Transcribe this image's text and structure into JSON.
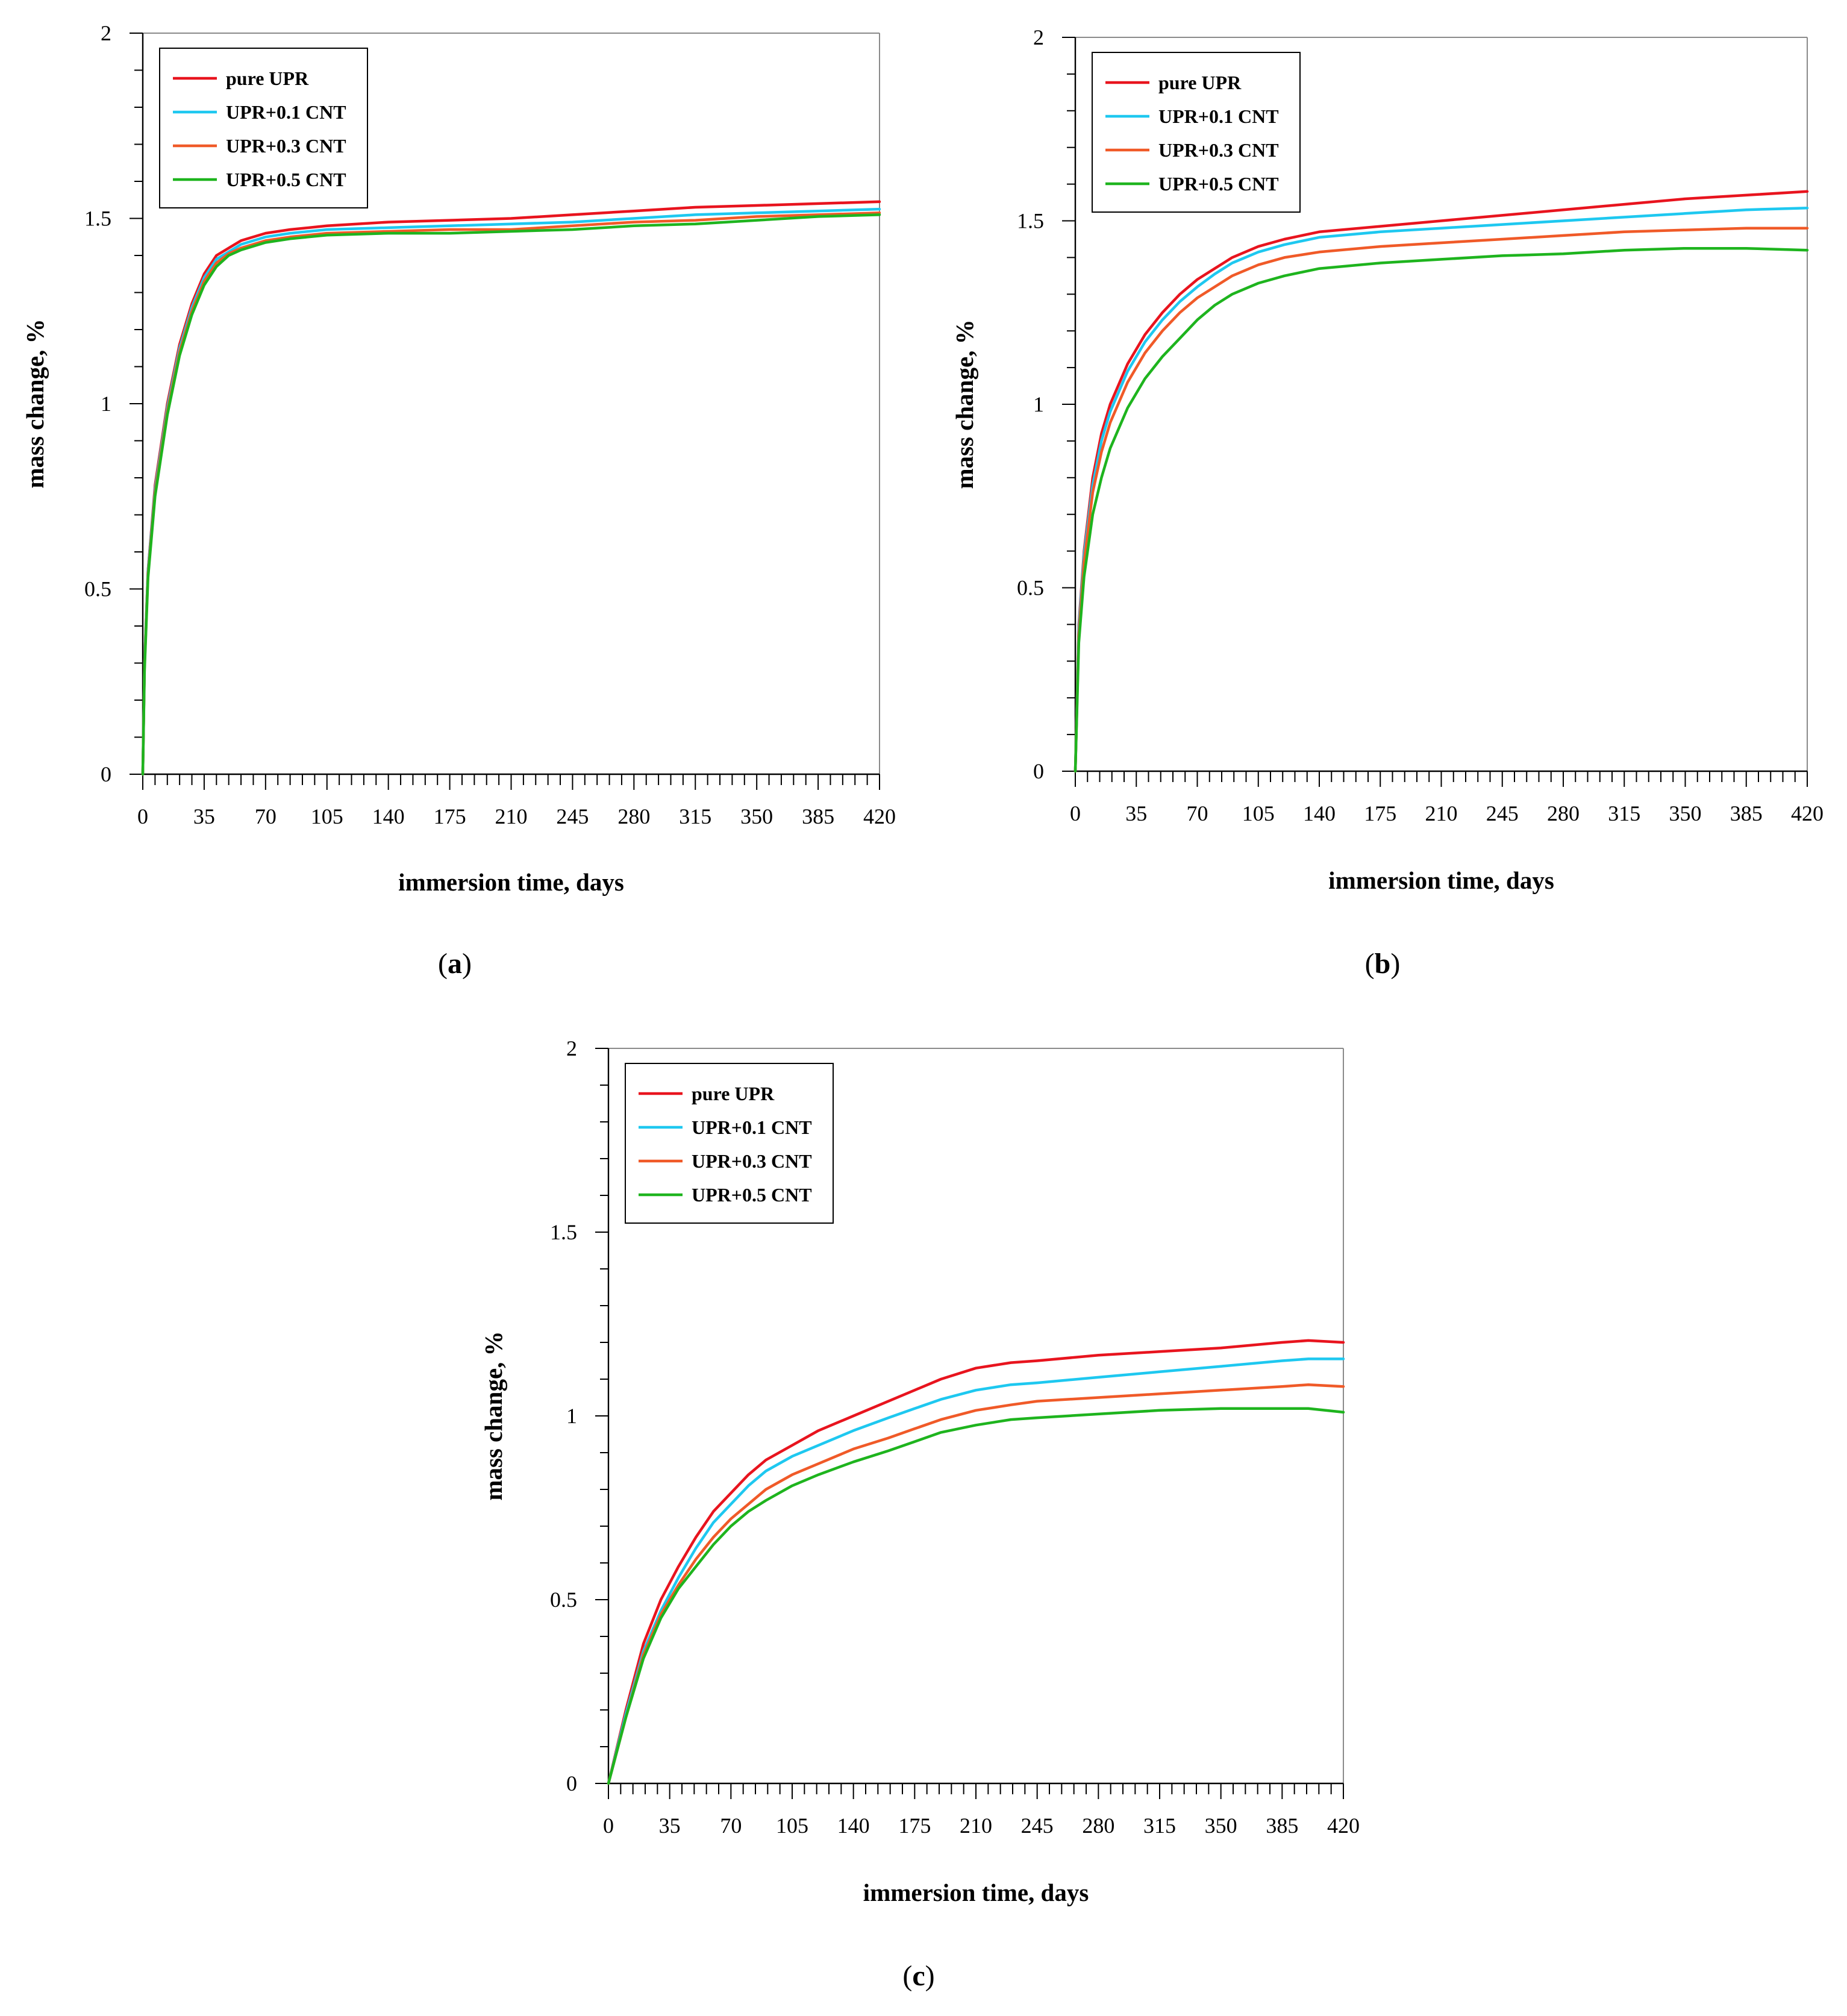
{
  "chart_data": [
    {
      "type": "line",
      "panel": "a",
      "panel_label": "a",
      "xlabel": "immersion time, days",
      "ylabel": "mass change, %",
      "xlim": [
        0,
        420
      ],
      "ylim": [
        0,
        2
      ],
      "xticks": [
        "0",
        "35",
        "70",
        "105",
        "140",
        "175",
        "210",
        "245",
        "280",
        "315",
        "350",
        "385",
        "420"
      ],
      "yticks": [
        "0",
        "0.5",
        "1",
        "1.5",
        "2"
      ],
      "legend": [
        "pure UPR",
        "UPR+0.1 CNT",
        "UPR+0.3 CNT",
        "UPR+0.5 CNT"
      ],
      "legend_position": "top-left",
      "series": [
        {
          "name": "pure UPR",
          "color": "#e8141e",
          "x": [
            0,
            1,
            3,
            7,
            14,
            21,
            28,
            35,
            42,
            49,
            56,
            70,
            84,
            105,
            140,
            175,
            210,
            245,
            280,
            315,
            350,
            385,
            420
          ],
          "y": [
            0,
            0.3,
            0.55,
            0.78,
            1.0,
            1.16,
            1.27,
            1.35,
            1.4,
            1.42,
            1.44,
            1.46,
            1.47,
            1.48,
            1.49,
            1.495,
            1.5,
            1.51,
            1.52,
            1.53,
            1.535,
            1.54,
            1.545
          ]
        },
        {
          "name": "UPR+0.1 CNT",
          "color": "#1ec8f0",
          "x": [
            0,
            1,
            3,
            7,
            14,
            21,
            28,
            35,
            42,
            49,
            56,
            70,
            84,
            105,
            140,
            175,
            210,
            245,
            280,
            315,
            350,
            385,
            420
          ],
          "y": [
            0,
            0.3,
            0.55,
            0.77,
            0.99,
            1.15,
            1.26,
            1.34,
            1.39,
            1.41,
            1.43,
            1.45,
            1.46,
            1.47,
            1.475,
            1.48,
            1.485,
            1.49,
            1.5,
            1.51,
            1.515,
            1.52,
            1.525
          ]
        },
        {
          "name": "UPR+0.3 CNT",
          "color": "#f05a28",
          "x": [
            0,
            1,
            3,
            7,
            14,
            21,
            28,
            35,
            42,
            49,
            56,
            70,
            84,
            105,
            140,
            175,
            210,
            245,
            280,
            315,
            350,
            385,
            420
          ],
          "y": [
            0,
            0.29,
            0.54,
            0.76,
            0.98,
            1.14,
            1.25,
            1.33,
            1.38,
            1.405,
            1.42,
            1.44,
            1.45,
            1.46,
            1.465,
            1.47,
            1.47,
            1.48,
            1.49,
            1.495,
            1.505,
            1.51,
            1.515
          ]
        },
        {
          "name": "UPR+0.5 CNT",
          "color": "#1eb41e",
          "x": [
            0,
            1,
            3,
            7,
            14,
            21,
            28,
            35,
            42,
            49,
            56,
            70,
            84,
            105,
            140,
            175,
            210,
            245,
            280,
            315,
            350,
            385,
            420
          ],
          "y": [
            0,
            0.28,
            0.53,
            0.75,
            0.97,
            1.13,
            1.24,
            1.32,
            1.37,
            1.4,
            1.415,
            1.435,
            1.445,
            1.455,
            1.46,
            1.46,
            1.465,
            1.47,
            1.48,
            1.485,
            1.495,
            1.505,
            1.51
          ]
        }
      ]
    },
    {
      "type": "line",
      "panel": "b",
      "panel_label": "b",
      "xlabel": "immersion time, days",
      "ylabel": "mass change, %",
      "xlim": [
        0,
        420
      ],
      "ylim": [
        0,
        2
      ],
      "xticks": [
        "0",
        "35",
        "70",
        "105",
        "140",
        "175",
        "210",
        "245",
        "280",
        "315",
        "350",
        "385",
        "420"
      ],
      "yticks": [
        "0",
        "0.5",
        "1",
        "1.5",
        "2"
      ],
      "legend": [
        "pure UPR",
        "UPR+0.1 CNT",
        "UPR+0.3 CNT",
        "UPR+0.5 CNT"
      ],
      "legend_position": "top-left",
      "series": [
        {
          "name": "pure UPR",
          "color": "#e8141e",
          "x": [
            0,
            2,
            5,
            10,
            15,
            20,
            30,
            40,
            50,
            60,
            70,
            80,
            90,
            105,
            120,
            140,
            175,
            210,
            245,
            280,
            315,
            350,
            385,
            420
          ],
          "y": [
            0,
            0.4,
            0.6,
            0.8,
            0.92,
            1.0,
            1.11,
            1.19,
            1.25,
            1.3,
            1.34,
            1.37,
            1.4,
            1.43,
            1.45,
            1.47,
            1.485,
            1.5,
            1.515,
            1.53,
            1.545,
            1.56,
            1.57,
            1.58
          ]
        },
        {
          "name": "UPR+0.1 CNT",
          "color": "#1ec8f0",
          "x": [
            0,
            2,
            5,
            10,
            15,
            20,
            30,
            40,
            50,
            60,
            70,
            80,
            90,
            105,
            120,
            140,
            175,
            210,
            245,
            280,
            315,
            350,
            385,
            420
          ],
          "y": [
            0,
            0.39,
            0.59,
            0.78,
            0.9,
            0.98,
            1.09,
            1.17,
            1.23,
            1.28,
            1.32,
            1.355,
            1.385,
            1.415,
            1.435,
            1.455,
            1.47,
            1.48,
            1.49,
            1.5,
            1.51,
            1.52,
            1.53,
            1.535
          ]
        },
        {
          "name": "UPR+0.3 CNT",
          "color": "#f05a28",
          "x": [
            0,
            2,
            5,
            10,
            15,
            20,
            30,
            40,
            50,
            60,
            70,
            80,
            90,
            105,
            120,
            140,
            175,
            210,
            245,
            280,
            315,
            350,
            385,
            420
          ],
          "y": [
            0,
            0.37,
            0.57,
            0.76,
            0.87,
            0.95,
            1.06,
            1.14,
            1.2,
            1.25,
            1.29,
            1.32,
            1.35,
            1.38,
            1.4,
            1.415,
            1.43,
            1.44,
            1.45,
            1.46,
            1.47,
            1.475,
            1.48,
            1.48
          ]
        },
        {
          "name": "UPR+0.5 CNT",
          "color": "#1eb41e",
          "x": [
            0,
            2,
            5,
            10,
            15,
            20,
            30,
            40,
            50,
            60,
            70,
            80,
            90,
            105,
            120,
            140,
            175,
            210,
            245,
            280,
            315,
            350,
            385,
            420
          ],
          "y": [
            0,
            0.35,
            0.53,
            0.7,
            0.8,
            0.88,
            0.99,
            1.07,
            1.13,
            1.18,
            1.23,
            1.27,
            1.3,
            1.33,
            1.35,
            1.37,
            1.385,
            1.395,
            1.405,
            1.41,
            1.42,
            1.425,
            1.425,
            1.42
          ]
        }
      ]
    },
    {
      "type": "line",
      "panel": "c",
      "panel_label": "c",
      "xlabel": "immersion time, days",
      "ylabel": "mass change, %",
      "xlim": [
        0,
        420
      ],
      "ylim": [
        0,
        2
      ],
      "xticks": [
        "0",
        "35",
        "70",
        "105",
        "140",
        "175",
        "210",
        "245",
        "280",
        "315",
        "350",
        "385",
        "420"
      ],
      "yticks": [
        "0",
        "0.5",
        "1",
        "1.5",
        "2"
      ],
      "legend": [
        "pure UPR",
        "UPR+0.1 CNT",
        "UPR+0.3 CNT",
        "UPR+0.5 CNT"
      ],
      "legend_position": "top-left",
      "series": [
        {
          "name": "pure UPR",
          "color": "#e8141e",
          "x": [
            0,
            10,
            20,
            30,
            40,
            50,
            60,
            70,
            80,
            90,
            105,
            120,
            140,
            160,
            175,
            190,
            210,
            230,
            245,
            280,
            315,
            350,
            385,
            400,
            420
          ],
          "y": [
            0,
            0.2,
            0.38,
            0.5,
            0.59,
            0.67,
            0.74,
            0.79,
            0.84,
            0.88,
            0.92,
            0.96,
            1.0,
            1.04,
            1.07,
            1.1,
            1.13,
            1.145,
            1.15,
            1.165,
            1.175,
            1.185,
            1.2,
            1.205,
            1.2
          ]
        },
        {
          "name": "UPR+0.1 CNT",
          "color": "#1ec8f0",
          "x": [
            0,
            10,
            20,
            30,
            40,
            50,
            60,
            70,
            80,
            90,
            105,
            120,
            140,
            160,
            175,
            190,
            210,
            230,
            245,
            280,
            315,
            350,
            385,
            400,
            420
          ],
          "y": [
            0,
            0.19,
            0.36,
            0.47,
            0.56,
            0.64,
            0.71,
            0.76,
            0.81,
            0.85,
            0.89,
            0.92,
            0.96,
            0.995,
            1.02,
            1.045,
            1.07,
            1.085,
            1.09,
            1.105,
            1.12,
            1.135,
            1.15,
            1.155,
            1.155
          ]
        },
        {
          "name": "UPR+0.3 CNT",
          "color": "#f05a28",
          "x": [
            0,
            10,
            20,
            30,
            40,
            50,
            60,
            70,
            80,
            90,
            105,
            120,
            140,
            160,
            175,
            190,
            210,
            230,
            245,
            280,
            315,
            350,
            385,
            400,
            420
          ],
          "y": [
            0,
            0.18,
            0.35,
            0.46,
            0.54,
            0.61,
            0.67,
            0.72,
            0.76,
            0.8,
            0.84,
            0.87,
            0.91,
            0.94,
            0.965,
            0.99,
            1.015,
            1.03,
            1.04,
            1.05,
            1.06,
            1.07,
            1.08,
            1.085,
            1.08
          ]
        },
        {
          "name": "UPR+0.5 CNT",
          "color": "#1eb41e",
          "x": [
            0,
            10,
            20,
            30,
            40,
            50,
            60,
            70,
            80,
            90,
            105,
            120,
            140,
            160,
            175,
            190,
            210,
            230,
            245,
            280,
            315,
            350,
            385,
            400,
            420
          ],
          "y": [
            0,
            0.18,
            0.34,
            0.45,
            0.53,
            0.59,
            0.65,
            0.7,
            0.74,
            0.77,
            0.81,
            0.84,
            0.875,
            0.905,
            0.93,
            0.955,
            0.975,
            0.99,
            0.995,
            1.005,
            1.015,
            1.02,
            1.02,
            1.02,
            1.01
          ]
        }
      ]
    }
  ]
}
